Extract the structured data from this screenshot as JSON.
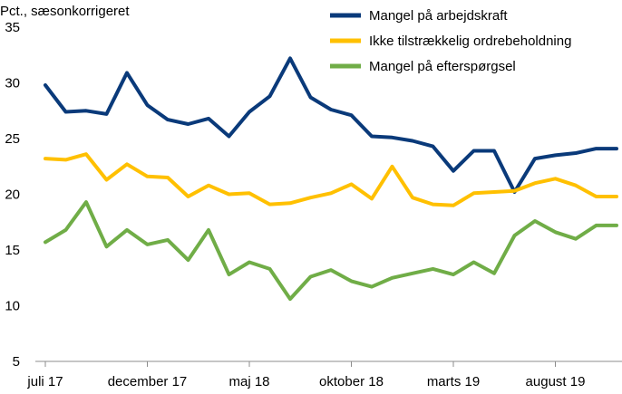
{
  "chart_data": {
    "type": "line",
    "ylabel": "Pct., sæsonkorrigeret",
    "ylim": [
      5,
      35
    ],
    "yticks": [
      5,
      10,
      15,
      20,
      25,
      30,
      35
    ],
    "grid": false,
    "legend_placement": "top-right",
    "x_tick_labels": [
      {
        "index": 0,
        "label": "juli 17"
      },
      {
        "index": 5,
        "label": "december 17"
      },
      {
        "index": 10,
        "label": "maj 18"
      },
      {
        "index": 15,
        "label": "oktober 18"
      },
      {
        "index": 20,
        "label": "marts 19"
      },
      {
        "index": 25,
        "label": "august 19"
      }
    ],
    "n_points": 29,
    "series": [
      {
        "name": "Mangel på arbejdskraft",
        "color": "#0a3a7a",
        "values": [
          29.8,
          27.4,
          27.5,
          27.2,
          30.9,
          28.0,
          26.7,
          26.3,
          26.8,
          25.2,
          27.4,
          28.8,
          32.2,
          28.7,
          27.6,
          27.1,
          25.2,
          25.1,
          24.8,
          24.3,
          22.1,
          23.9,
          23.9,
          20.2,
          23.2,
          23.5,
          23.7,
          24.1,
          24.1
        ]
      },
      {
        "name": "Ikke tilstrækkelig ordrebeholdning",
        "color": "#ffc000",
        "values": [
          23.2,
          23.1,
          23.6,
          21.3,
          22.7,
          21.6,
          21.5,
          19.8,
          20.8,
          20.0,
          20.1,
          19.1,
          19.2,
          19.7,
          20.1,
          20.9,
          19.6,
          22.5,
          19.7,
          19.1,
          19.0,
          20.1,
          20.2,
          20.3,
          21.0,
          21.4,
          20.8,
          19.8,
          19.8
        ]
      },
      {
        "name": "Mangel på efterspørgsel",
        "color": "#70ad47",
        "values": [
          15.7,
          16.8,
          19.3,
          15.3,
          16.8,
          15.5,
          15.9,
          14.1,
          16.8,
          12.8,
          13.9,
          13.3,
          10.6,
          12.6,
          13.2,
          12.2,
          11.7,
          12.5,
          12.9,
          13.3,
          12.8,
          13.9,
          12.9,
          16.3,
          17.6,
          16.6,
          16.0,
          17.2,
          17.2
        ]
      }
    ]
  }
}
